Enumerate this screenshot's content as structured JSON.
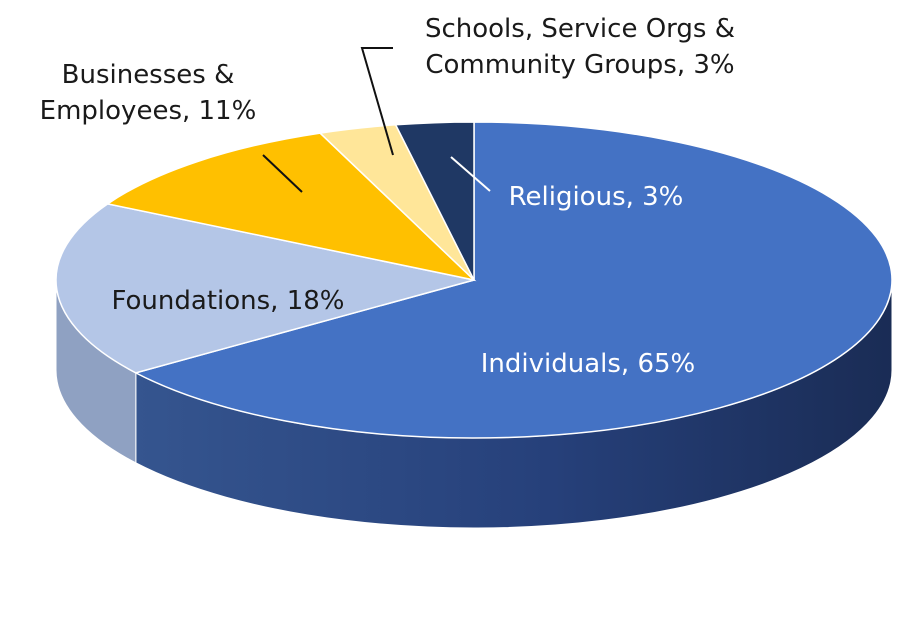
{
  "chart_data": {
    "type": "pie",
    "style": "3d",
    "title": "",
    "start_angle_deg": 90,
    "direction": "clockwise",
    "slices": [
      {
        "label": "Individuals, 65%",
        "value": 65,
        "color": "#4472C4",
        "side_color": "#2B4A86",
        "label_color": "#ffffff"
      },
      {
        "label": "Foundations, 18%",
        "value": 18,
        "color": "#B4C6E7",
        "side_color": "#8FA1C2",
        "label_color": "#1a1a1a"
      },
      {
        "label": "Businesses & Employees, 11%",
        "lines": [
          "Businesses &",
          "Employees, 11%"
        ],
        "value": 11,
        "color": "#FFC000",
        "side_color": "#C79400",
        "label_color": "#1a1a1a"
      },
      {
        "label": "Schools, Service Orgs & Community Groups, 3%",
        "lines": [
          "Schools, Service Orgs &",
          "Community Groups, 3%"
        ],
        "value": 3,
        "color": "#FFE699",
        "side_color": "#D9C07A",
        "label_color": "#1a1a1a"
      },
      {
        "label": "Religious, 3%",
        "value": 3,
        "color": "#1F3864",
        "side_color": "#13233F",
        "label_color": "#ffffff"
      }
    ]
  }
}
